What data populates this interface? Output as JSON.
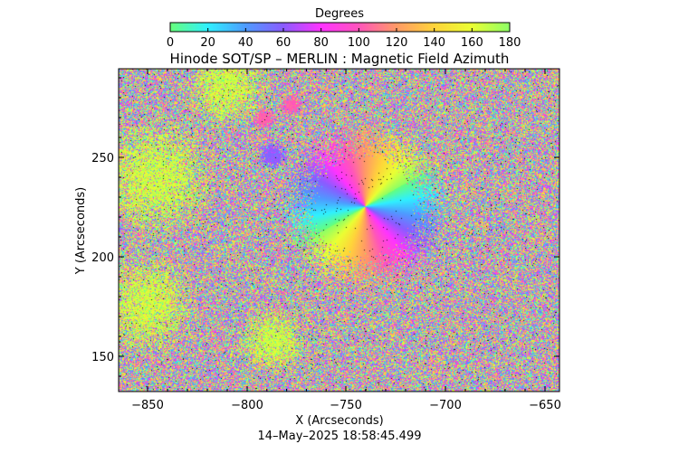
{
  "colorbar": {
    "title": "Degrees",
    "ticks": [
      "0",
      "20",
      "40",
      "60",
      "80",
      "100",
      "120",
      "140",
      "160",
      "180"
    ],
    "range": [
      0,
      180
    ],
    "gradient_stops": [
      "#66ff7a",
      "#2ff0ff",
      "#4e9bff",
      "#8a5cff",
      "#ff33ff",
      "#ff55bb",
      "#ff9a66",
      "#ffd43a",
      "#eaff33",
      "#8cff66"
    ]
  },
  "title": "Hinode SOT/SP – MERLIN : Magnetic Field Azimuth",
  "axes": {
    "xlabel": "X (Arcseconds)",
    "ylabel": "Y (Arcseconds)",
    "x_ticks": [
      "−850",
      "−800",
      "−750",
      "−700",
      "−650"
    ],
    "y_ticks": [
      "150",
      "200",
      "250"
    ]
  },
  "timestamp": "14–May–2025 18:58:45.499"
}
